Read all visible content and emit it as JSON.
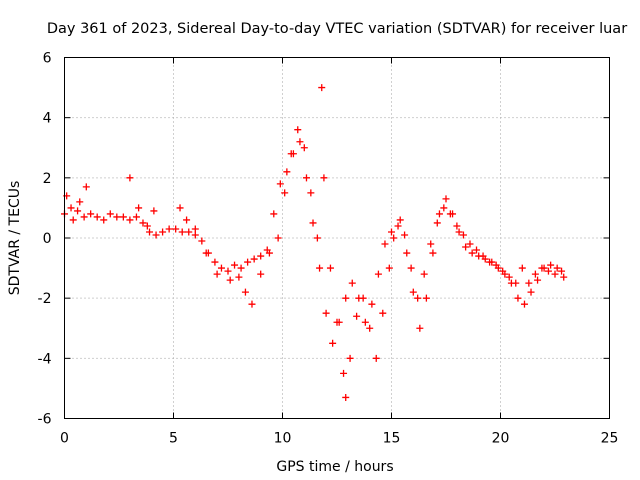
{
  "chart_data": {
    "type": "scatter",
    "title": "Day 361 of 2023, Sidereal Day-to-day VTEC variation (SDTVAR) for receiver luar",
    "xlabel": "GPS time / hours",
    "ylabel": "SDTVAR / TECUs",
    "xlim": [
      0,
      25
    ],
    "ylim": [
      -6,
      6
    ],
    "xticks": [
      0,
      5,
      10,
      15,
      20,
      25
    ],
    "yticks": [
      -6,
      -4,
      -2,
      0,
      2,
      4,
      6
    ],
    "grid": true,
    "marker": "+",
    "color": "#ff0000",
    "series": [
      {
        "name": "SDTVAR",
        "x": [
          0.0,
          0.3,
          0.6,
          0.9,
          1.2,
          1.5,
          1.8,
          2.1,
          2.4,
          2.7,
          3.0,
          3.3,
          3.6,
          3.9,
          4.2,
          4.5,
          4.8,
          5.1,
          5.4,
          5.7,
          6.0,
          6.3,
          6.6,
          6.9,
          7.2,
          7.5,
          7.8,
          8.1,
          8.4,
          8.7,
          9.0,
          9.3,
          9.6,
          9.9,
          10.2,
          10.5,
          10.8,
          11.1,
          11.4,
          11.7,
          12.0,
          12.3,
          12.6,
          12.9,
          13.2,
          13.5,
          13.8,
          14.1,
          14.4,
          14.7,
          15.0,
          15.3,
          15.6,
          15.9,
          16.2,
          16.5,
          16.8,
          17.1,
          17.4,
          17.7,
          18.0,
          18.3,
          18.6,
          18.9,
          19.2,
          19.5,
          19.8,
          20.1,
          20.4,
          20.7,
          21.0,
          21.3,
          21.6,
          21.9,
          22.2,
          22.5,
          22.8
        ],
        "y": [
          0.8,
          1.0,
          0.9,
          0.7,
          0.8,
          0.7,
          0.6,
          0.8,
          0.7,
          0.7,
          0.6,
          0.7,
          0.5,
          0.2,
          0.1,
          0.2,
          0.3,
          0.3,
          0.2,
          0.2,
          0.1,
          -0.1,
          -0.5,
          -0.8,
          -1.0,
          -1.1,
          -0.9,
          -1.0,
          -0.8,
          -0.7,
          -0.6,
          -0.4,
          0.8,
          1.8,
          2.2,
          2.8,
          3.2,
          2.0,
          0.5,
          -1.0,
          -2.5,
          -3.5,
          -2.8,
          -2.0,
          -1.5,
          -2.0,
          -2.8,
          -2.2,
          -1.2,
          -0.2,
          0.2,
          0.4,
          0.1,
          -1.0,
          -2.0,
          -1.2,
          -0.2,
          0.5,
          1.0,
          0.8,
          0.4,
          0.1,
          -0.2,
          -0.4,
          -0.6,
          -0.8,
          -0.9,
          -1.1,
          -1.3,
          -1.5,
          -1.0,
          -1.5,
          -1.2,
          -1.0,
          -1.1,
          -1.2,
          -1.1
        ]
      },
      {
        "name": "SDTVAR",
        "x": [
          0.1,
          0.4,
          0.7,
          1.0,
          3.0,
          3.4,
          3.8,
          4.1,
          5.3,
          5.6,
          6.0,
          6.5,
          7.0,
          7.6,
          8.0,
          8.3,
          8.6,
          9.0,
          9.4,
          9.8,
          10.1,
          10.4,
          10.7,
          11.0,
          11.3,
          11.6,
          11.8,
          11.9,
          12.2,
          12.5,
          12.8,
          12.9,
          13.1,
          13.4,
          13.7,
          14.0,
          14.3,
          14.6,
          14.9,
          15.1,
          15.4,
          15.7,
          16.0,
          16.3,
          16.6,
          16.9,
          17.2,
          17.5,
          17.8,
          18.1,
          18.4,
          18.7,
          19.0,
          19.3,
          19.6,
          19.9,
          20.2,
          20.5,
          20.8,
          21.1,
          21.4,
          21.7,
          22.0,
          22.3,
          22.6,
          22.9
        ],
        "y": [
          1.4,
          0.6,
          1.2,
          1.7,
          2.0,
          1.0,
          0.4,
          0.9,
          1.0,
          0.6,
          0.3,
          -0.5,
          -1.2,
          -1.4,
          -1.3,
          -1.8,
          -2.2,
          -1.2,
          -0.5,
          0.0,
          1.5,
          2.8,
          3.6,
          3.0,
          1.5,
          0.0,
          5.0,
          2.0,
          -1.0,
          -2.8,
          -4.5,
          -5.3,
          -4.0,
          -2.6,
          -2.0,
          -3.0,
          -4.0,
          -2.5,
          -1.0,
          0.0,
          0.6,
          -0.5,
          -1.8,
          -3.0,
          -2.0,
          -0.5,
          0.8,
          1.3,
          0.8,
          0.2,
          -0.3,
          -0.5,
          -0.6,
          -0.7,
          -0.8,
          -1.0,
          -1.2,
          -1.5,
          -2.0,
          -2.2,
          -1.8,
          -1.4,
          -1.0,
          -0.9,
          -1.0,
          -1.3
        ]
      }
    ]
  }
}
